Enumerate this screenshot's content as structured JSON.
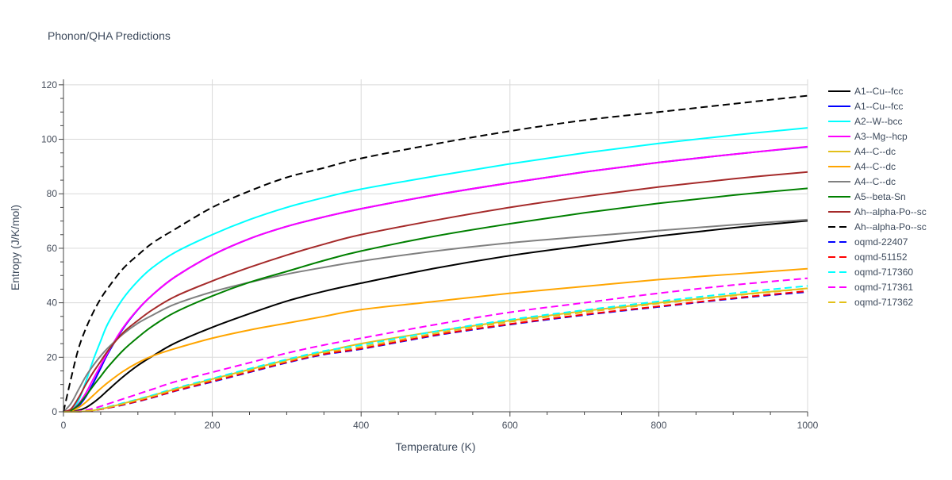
{
  "chart_data": {
    "type": "line",
    "title": "Phonon/QHA Predictions",
    "xlabel": "Temperature (K)",
    "ylabel": "Entropy (J/K/mol)",
    "xlim": [
      0,
      1000
    ],
    "ylim": [
      0,
      122
    ],
    "x_ticks": [
      0,
      200,
      400,
      600,
      800,
      1000
    ],
    "y_ticks": [
      0,
      20,
      40,
      60,
      80,
      100,
      120
    ],
    "grid": true,
    "legend_position": "right",
    "x": [
      0,
      10,
      20,
      30,
      40,
      50,
      60,
      80,
      100,
      120,
      150,
      200,
      250,
      300,
      350,
      400,
      500,
      600,
      700,
      800,
      900,
      1000
    ],
    "series": [
      {
        "name": "A1--Cu--fcc",
        "color": "#000000",
        "dash": "solid",
        "values": [
          0,
          0.1,
          0.5,
          1.5,
          3.3,
          5.5,
          8.0,
          12.8,
          17.0,
          20.5,
          25.2,
          31.0,
          36.0,
          40.6,
          44.2,
          47.2,
          52.7,
          57.3,
          61.0,
          64.5,
          67.5,
          70.1
        ]
      },
      {
        "name": "A1--Cu--fcc",
        "color": "#0000ff",
        "dash": "solid",
        "values": [
          0,
          0.3,
          2.0,
          5.5,
          10.5,
          16.0,
          21.5,
          30.5,
          37.5,
          43.0,
          49.5,
          57.5,
          63.5,
          68.0,
          71.5,
          74.5,
          79.6,
          84.0,
          88.0,
          91.5,
          94.5,
          97.2
        ]
      },
      {
        "name": "A2--W--bcc",
        "color": "#00ffff",
        "dash": "solid",
        "values": [
          0,
          0.5,
          4.0,
          11.0,
          19.0,
          26.0,
          32.5,
          41.5,
          48.0,
          53.0,
          58.5,
          65.0,
          70.5,
          75.0,
          78.6,
          81.7,
          86.5,
          91.0,
          95.0,
          98.5,
          101.5,
          104.2
        ]
      },
      {
        "name": "A3--Mg--hcp",
        "color": "#ff00ff",
        "dash": "solid",
        "values": [
          0,
          0.6,
          2.8,
          6.8,
          12.0,
          17.0,
          22.0,
          30.8,
          37.6,
          43.0,
          49.5,
          57.5,
          63.5,
          68.0,
          71.5,
          74.5,
          79.6,
          84.0,
          88.0,
          91.5,
          94.5,
          97.3
        ]
      },
      {
        "name": "A4--C--dc",
        "color": "#e3c01a",
        "dash": "solid",
        "values": [
          0,
          0.0,
          0.05,
          0.2,
          0.5,
          1.0,
          1.6,
          3.0,
          4.5,
          6.0,
          8.3,
          12.0,
          15.5,
          19.0,
          22.0,
          25.0,
          29.5,
          33.5,
          37.0,
          40.0,
          42.8,
          45.3
        ]
      },
      {
        "name": "A4--C--dc",
        "color": "#ffa500",
        "dash": "solid",
        "values": [
          0,
          0.3,
          1.5,
          3.5,
          6.0,
          8.5,
          10.8,
          14.8,
          18.0,
          20.5,
          23.2,
          27.0,
          30.0,
          32.5,
          35.0,
          37.5,
          40.5,
          43.5,
          46.0,
          48.5,
          50.5,
          52.5
        ]
      },
      {
        "name": "A4--C--dc",
        "color": "#808080",
        "dash": "solid",
        "values": [
          0,
          3.0,
          8.0,
          13.0,
          17.0,
          20.5,
          23.5,
          28.5,
          32.5,
          35.5,
          39.5,
          44.0,
          47.5,
          50.5,
          53.0,
          55.3,
          59.0,
          62.0,
          64.3,
          66.5,
          68.6,
          70.5
        ]
      },
      {
        "name": "A5--beta-Sn",
        "color": "#008000",
        "dash": "solid",
        "values": [
          0,
          0.5,
          2.5,
          5.8,
          9.5,
          13.0,
          16.5,
          22.5,
          27.3,
          31.5,
          36.5,
          42.5,
          47.5,
          51.5,
          55.5,
          59.0,
          64.5,
          69.0,
          73.0,
          76.5,
          79.5,
          82.0
        ]
      },
      {
        "name": "Ah--alpha-Po--sc",
        "color": "#a52a2a",
        "dash": "solid",
        "values": [
          0,
          1.0,
          5.0,
          10.0,
          14.5,
          18.5,
          22.5,
          29.0,
          33.5,
          37.5,
          42.3,
          48.0,
          53.0,
          57.5,
          61.5,
          65.0,
          70.3,
          75.0,
          79.0,
          82.5,
          85.5,
          88.0
        ]
      },
      {
        "name": "Ah--alpha-Po--sc",
        "color": "#000000",
        "dash": "dash",
        "values": [
          0,
          12.0,
          23.0,
          30.5,
          36.5,
          41.5,
          45.5,
          52.5,
          57.5,
          62.0,
          67.0,
          75.0,
          81.0,
          86.0,
          89.5,
          93.0,
          98.3,
          103.0,
          107.0,
          110.0,
          113.0,
          116.0
        ]
      },
      {
        "name": "oqmd-22407",
        "color": "#0000ff",
        "dash": "dash",
        "values": [
          0,
          0.0,
          0.05,
          0.2,
          0.5,
          0.9,
          1.4,
          2.5,
          3.8,
          5.2,
          7.6,
          11.0,
          14.5,
          18.0,
          21.0,
          23.0,
          28.0,
          32.0,
          35.5,
          38.5,
          41.5,
          44.0
        ]
      },
      {
        "name": "oqmd-51152",
        "color": "#ff0000",
        "dash": "dash",
        "values": [
          0,
          0.0,
          0.05,
          0.2,
          0.5,
          0.9,
          1.4,
          2.6,
          3.9,
          5.3,
          7.7,
          11.2,
          14.7,
          18.2,
          21.2,
          23.2,
          28.2,
          32.2,
          35.7,
          38.7,
          41.7,
          44.3
        ]
      },
      {
        "name": "oqmd-717360",
        "color": "#00ffff",
        "dash": "dash",
        "values": [
          0,
          0.0,
          0.1,
          0.3,
          0.7,
          1.2,
          1.8,
          3.2,
          4.6,
          6.1,
          8.6,
          12.2,
          15.8,
          19.2,
          22.3,
          24.5,
          29.5,
          33.8,
          37.3,
          40.5,
          43.5,
          46.2
        ]
      },
      {
        "name": "oqmd-717361",
        "color": "#ff00ff",
        "dash": "dash",
        "values": [
          0,
          0.05,
          0.2,
          0.6,
          1.2,
          2.0,
          2.9,
          4.7,
          6.5,
          8.3,
          11.0,
          14.5,
          18.0,
          21.5,
          24.5,
          27.0,
          32.0,
          36.5,
          40.0,
          43.5,
          46.5,
          49.0
        ]
      },
      {
        "name": "oqmd-717362",
        "color": "#e3c01a",
        "dash": "dash",
        "values": [
          0,
          0.0,
          0.08,
          0.25,
          0.6,
          1.0,
          1.6,
          2.9,
          4.3,
          5.7,
          8.2,
          11.7,
          15.2,
          18.6,
          21.7,
          23.8,
          28.8,
          33.0,
          36.5,
          39.7,
          42.6,
          45.2
        ]
      }
    ]
  }
}
